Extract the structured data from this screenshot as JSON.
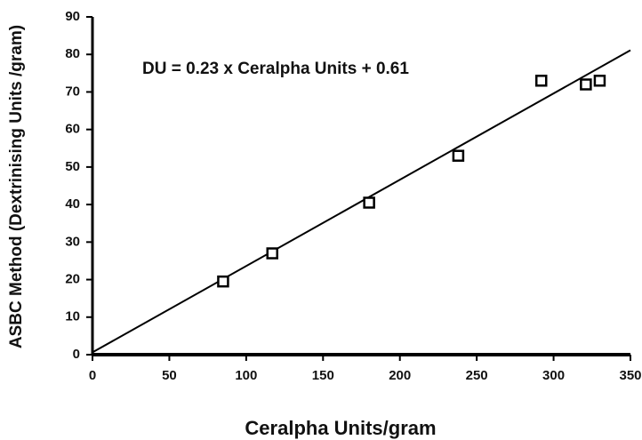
{
  "chart_data": {
    "type": "scatter",
    "annotation": "DU = 0.23 x Ceralpha Units + 0.61",
    "x_label": "Ceralpha Units/gram",
    "y_label": "ASBC Method (Dextrinising Units /gram)",
    "x": [
      85,
      117,
      180,
      238,
      292,
      321,
      330
    ],
    "values": [
      19.5,
      27,
      40.5,
      53,
      73,
      72,
      73
    ],
    "color": "#000000",
    "trendline": {
      "slope": 0.23,
      "intercept": 0.61
    },
    "xlim": [
      0,
      350
    ],
    "xticks": [
      0,
      50,
      100,
      150,
      200,
      250,
      300,
      350
    ],
    "ylim": [
      0,
      90
    ],
    "yticks": [
      0,
      10,
      20,
      30,
      40,
      50,
      60,
      70,
      80,
      90
    ],
    "grid": false
  }
}
